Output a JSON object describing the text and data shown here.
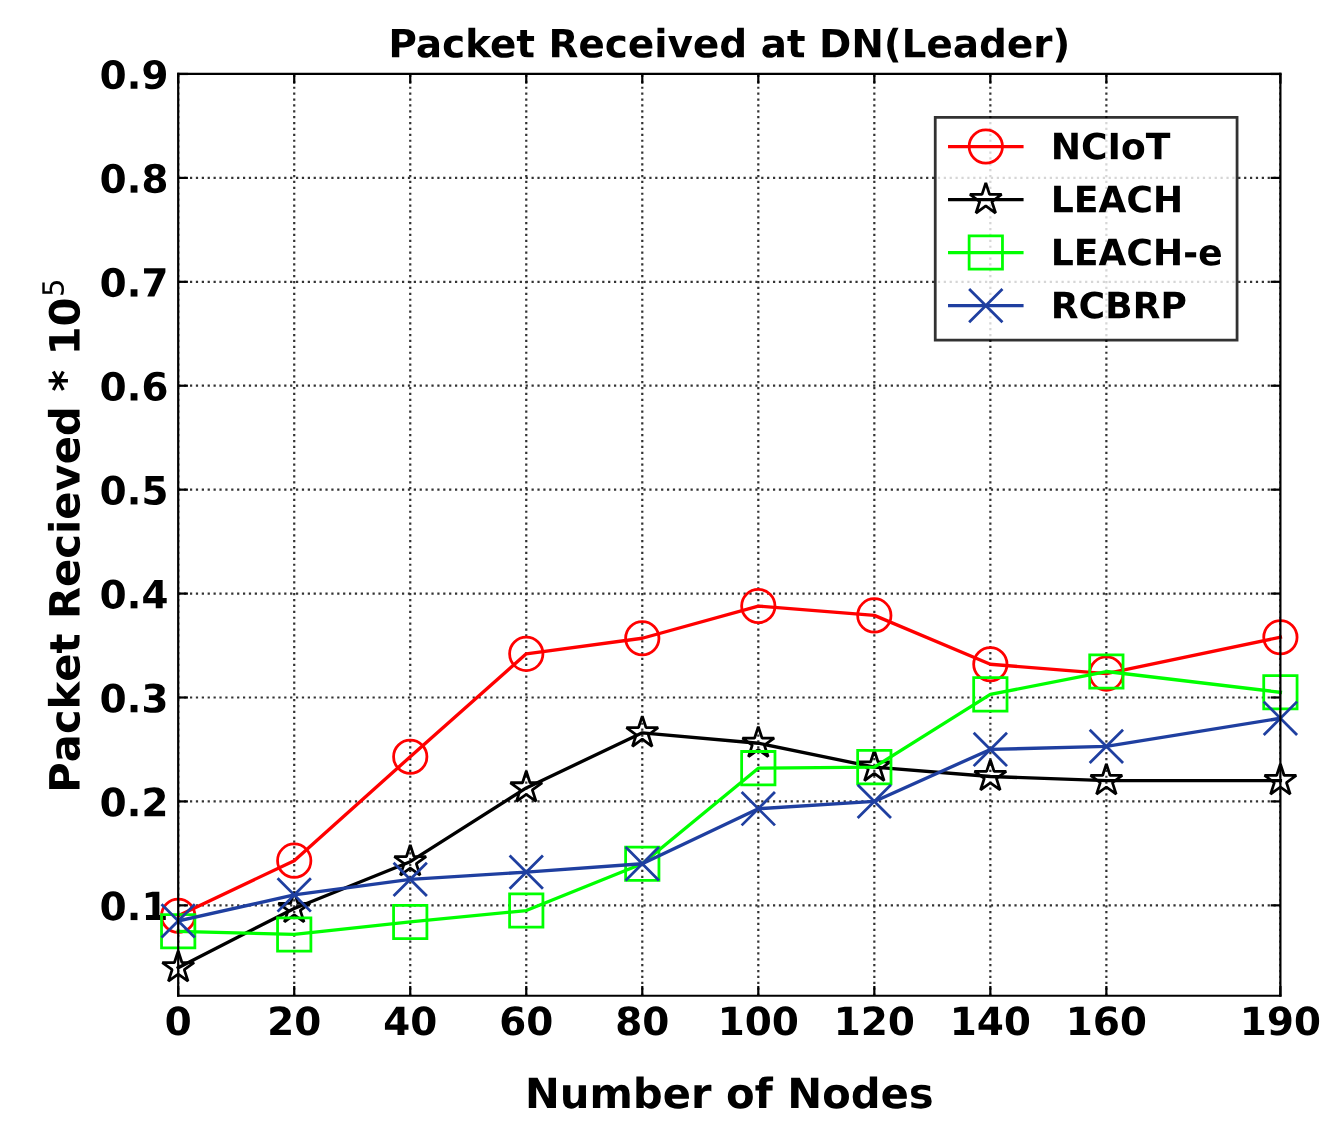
{
  "chart_data": {
    "type": "line",
    "title": "Packet Received at DN(Leader)",
    "xlabel": "Number of Nodes",
    "ylabel": "Packet Recieved * 10$^{5}$",
    "x": [
      0,
      20,
      40,
      60,
      80,
      100,
      120,
      140,
      160,
      190
    ],
    "series": [
      {
        "name": "NCIoT",
        "color": "#ff0000",
        "marker": "circle",
        "values": [
          0.09,
          0.143,
          0.243,
          0.342,
          0.357,
          0.388,
          0.379,
          0.332,
          0.323,
          0.358
        ]
      },
      {
        "name": "LEACH",
        "color": "#000000",
        "marker": "star",
        "values": [
          0.04,
          0.097,
          0.142,
          0.213,
          0.266,
          0.256,
          0.233,
          0.224,
          0.22,
          0.22
        ]
      },
      {
        "name": "LEACH-e",
        "color": "#00ff00",
        "marker": "square",
        "values": [
          0.075,
          0.072,
          0.084,
          0.095,
          0.14,
          0.232,
          0.233,
          0.303,
          0.325,
          0.305
        ]
      },
      {
        "name": "RCBRP",
        "color": "#1f3fa0",
        "marker": "cross",
        "values": [
          0.085,
          0.11,
          0.125,
          0.132,
          0.14,
          0.193,
          0.2,
          0.25,
          0.253,
          0.28
        ]
      }
    ],
    "xlim": [
      0,
      190
    ],
    "xticks": [
      0,
      20,
      40,
      60,
      80,
      100,
      120,
      140,
      160,
      190
    ],
    "ylim": [
      0.013,
      0.9
    ],
    "yticks": [
      0.1,
      0.2,
      0.3,
      0.4,
      0.5,
      0.6,
      0.7,
      0.8,
      0.9
    ],
    "grid": true,
    "legend": "top right",
    "line_style": "solid"
  }
}
